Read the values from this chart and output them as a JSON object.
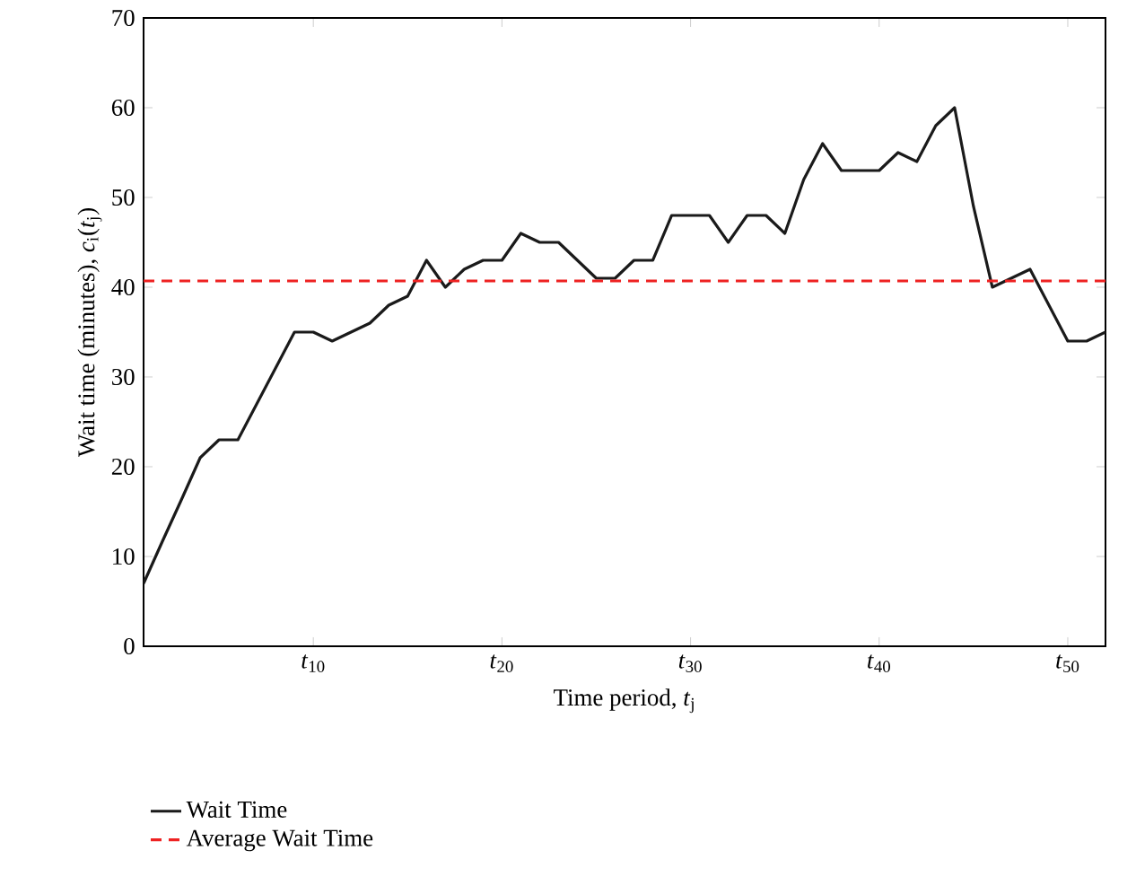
{
  "chart_data": {
    "type": "line",
    "xlabel": "Time period, *t*$_{j}$",
    "ylabel": "Wait time (minutes), *c*$_{i}$(*t*$_{j}$)",
    "x": [
      1,
      2,
      3,
      4,
      5,
      6,
      7,
      8,
      9,
      10,
      11,
      12,
      13,
      14,
      15,
      16,
      17,
      18,
      19,
      20,
      21,
      22,
      23,
      24,
      25,
      26,
      27,
      28,
      29,
      30,
      31,
      32,
      33,
      34,
      35,
      36,
      37,
      38,
      39,
      40,
      41,
      42,
      43,
      44,
      45,
      46,
      47,
      48,
      49,
      50,
      51,
      52
    ],
    "series": [
      {
        "name": "Wait Time",
        "color": "#1a1a1a",
        "values": [
          7,
          11.7,
          16.3,
          21,
          23,
          23,
          27,
          31,
          35,
          35,
          34,
          35,
          36,
          38,
          39,
          43,
          40,
          42,
          43,
          43,
          46,
          45,
          45,
          43,
          41,
          41,
          43,
          43,
          48,
          48,
          48,
          45,
          48,
          48,
          46,
          52,
          56,
          53,
          53,
          53,
          55,
          54,
          58,
          60,
          49,
          40,
          41,
          42,
          38,
          34,
          34,
          35
        ]
      }
    ],
    "ref_lines": [
      {
        "axis": "y",
        "value": 40.7,
        "label": "Average Wait Time",
        "color": "#ee2222",
        "line_style": "dashed"
      }
    ],
    "xlim": [
      1,
      52
    ],
    "ylim": [
      0,
      70
    ],
    "xticks": [
      {
        "value": 10,
        "label": "*t*$_{10}$"
      },
      {
        "value": 20,
        "label": "*t*$_{20}$"
      },
      {
        "value": 30,
        "label": "*t*$_{30}$"
      },
      {
        "value": 40,
        "label": "*t*$_{40}$"
      },
      {
        "value": 50,
        "label": "*t*$_{50}$"
      }
    ],
    "yticks": [
      0,
      10,
      20,
      30,
      40,
      50,
      60,
      70
    ],
    "grid": false,
    "legend": "bottom",
    "marker": "none",
    "line_style": "solid"
  }
}
